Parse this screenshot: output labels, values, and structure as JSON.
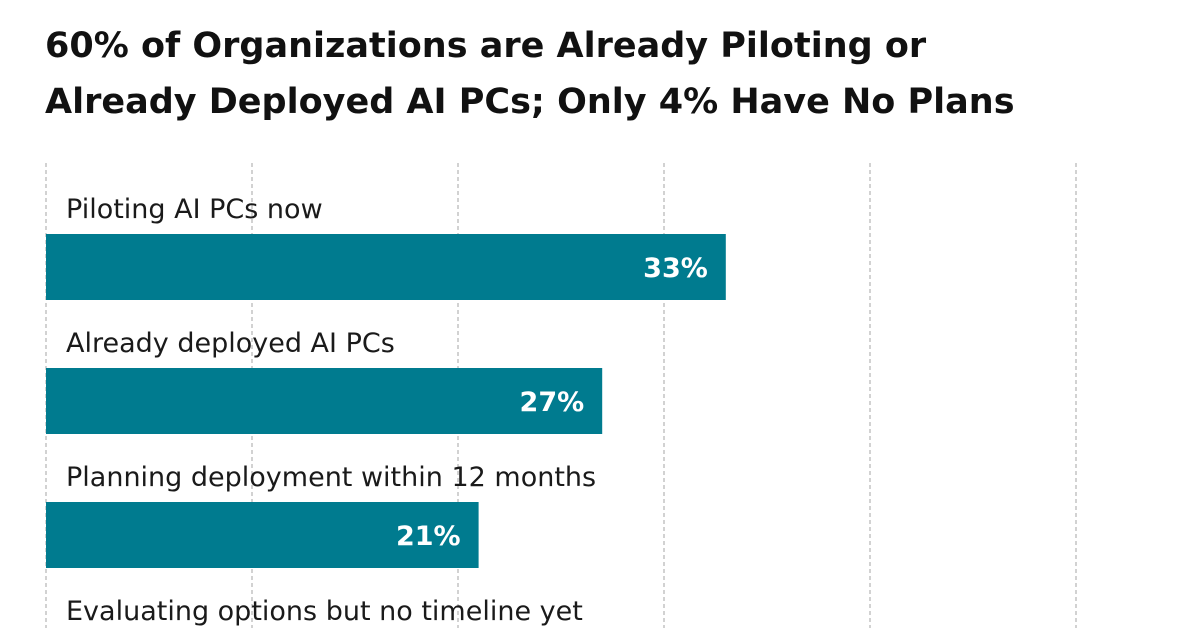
{
  "title_line1": "60% of Organizations are Already Piloting or",
  "title_line2": "Already Deployed AI PCs; Only 4% Have No Plans",
  "chart_data": {
    "type": "bar",
    "orientation": "horizontal",
    "categories": [
      "Piloting AI PCs now",
      "Already deployed AI PCs",
      "Planning deployment within 12 months",
      "Evaluating options but no timeline yet"
    ],
    "values": [
      33,
      27,
      21,
      null
    ],
    "value_labels": [
      "33%",
      "27%",
      "21%",
      ""
    ],
    "xlim": [
      0,
      50
    ],
    "grid": true,
    "grid_style": "dashed vertical",
    "bar_color": "#007b8f",
    "title": "60% of Organizations are Already Piloting or Already Deployed AI PCs; Only 4% Have No Plans"
  }
}
